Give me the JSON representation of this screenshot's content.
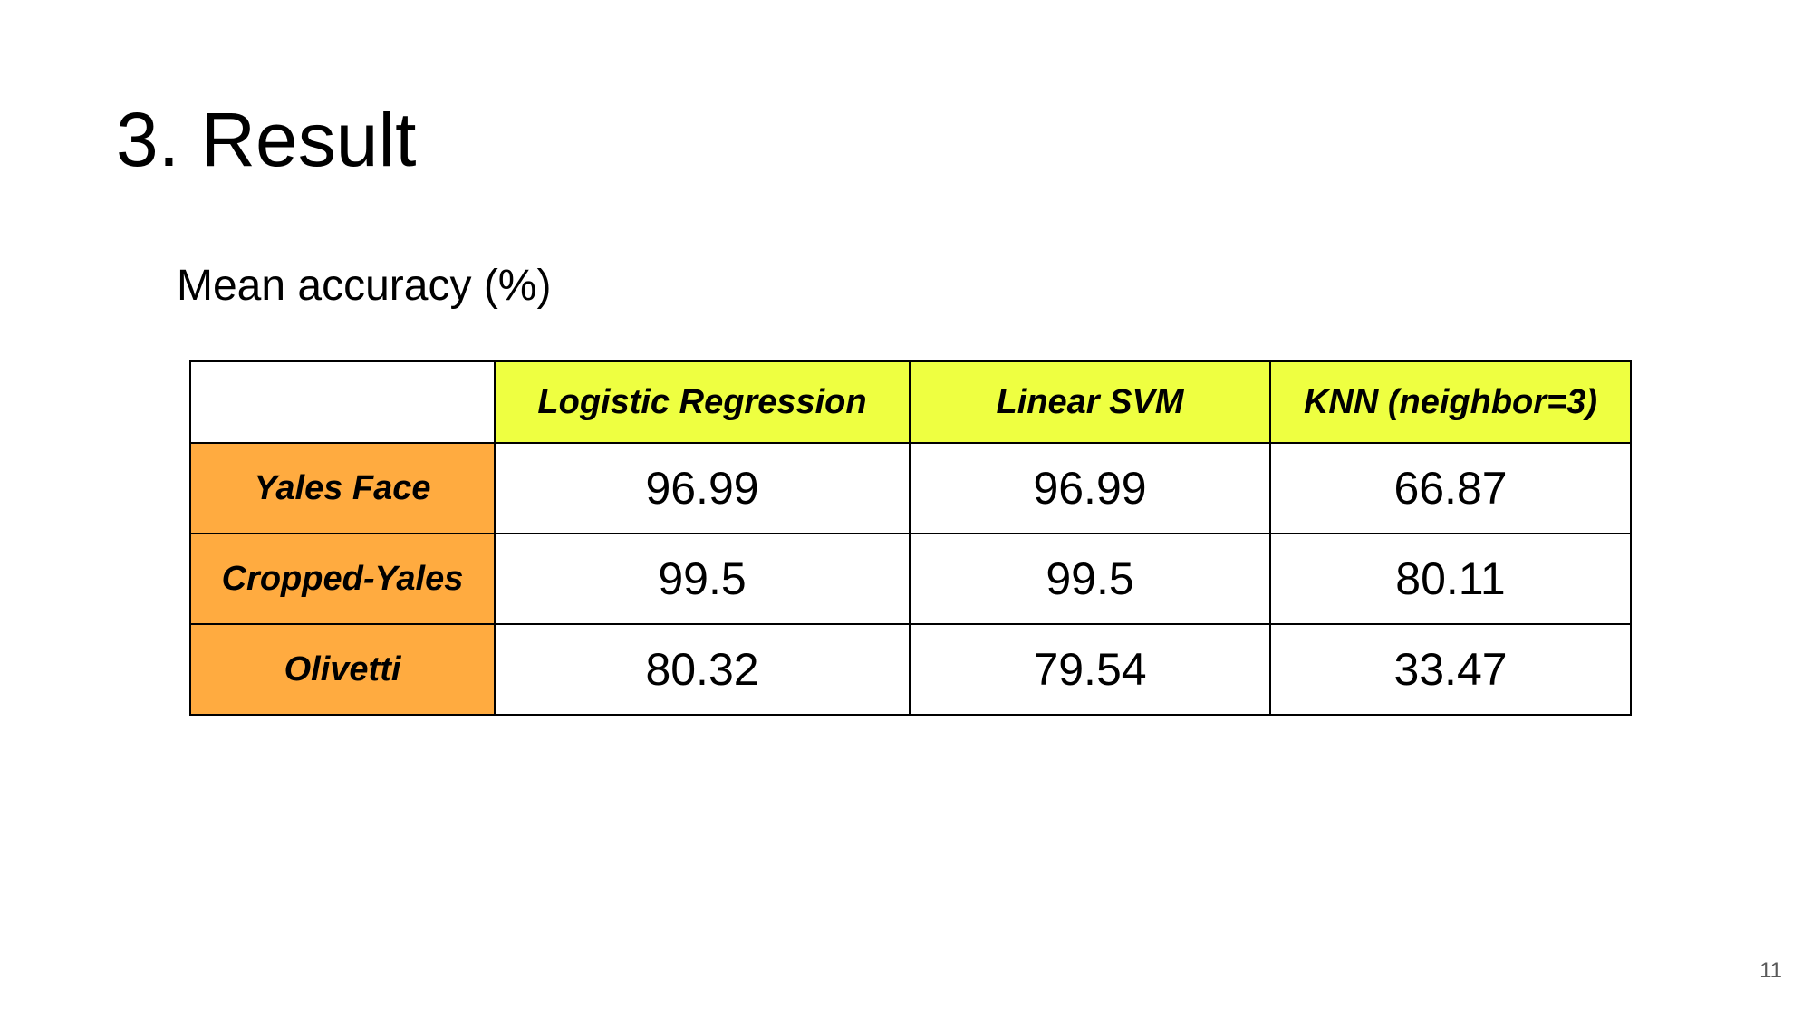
{
  "slide": {
    "title": "3. Result",
    "subtitle": "Mean accuracy (%)",
    "page_number": "11"
  },
  "table": {
    "corner": "",
    "columns": [
      "Logistic Regression",
      "Linear SVM",
      "KNN (neighbor=3)"
    ],
    "rows": [
      {
        "label": "Yales Face",
        "values": [
          "96.99",
          "96.99",
          "66.87"
        ]
      },
      {
        "label": "Cropped-Yales",
        "values": [
          "99.5",
          "99.5",
          "80.11"
        ]
      },
      {
        "label": "Olivetti",
        "values": [
          "80.32",
          "79.54",
          "33.47"
        ]
      }
    ]
  },
  "colors": {
    "header_fill": "#eeff41",
    "row_label_fill": "#ffab40",
    "border": "#000000"
  }
}
